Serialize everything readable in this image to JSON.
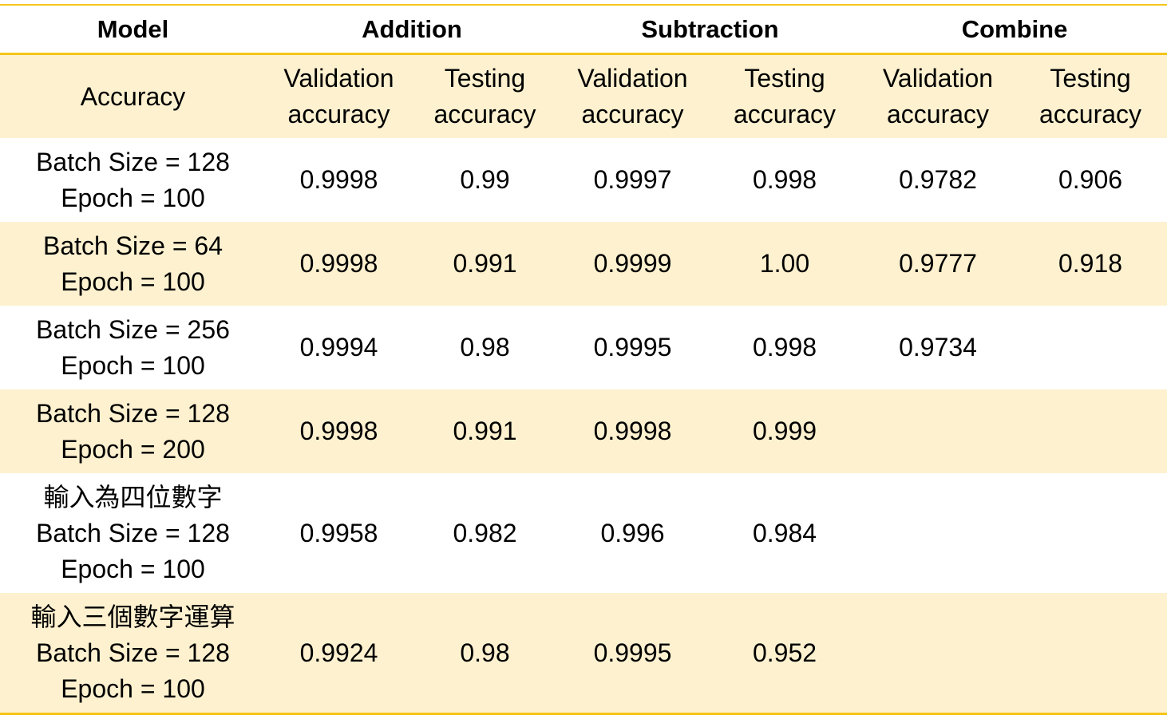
{
  "header": {
    "model": "Model",
    "groups": [
      "Addition",
      "Subtraction",
      "Combine"
    ]
  },
  "subheader": {
    "accuracy": "Accuracy",
    "validation_line1": "Validation",
    "testing_line1": "Testing",
    "line2": "accuracy"
  },
  "rows": [
    {
      "label": [
        "Batch Size = 128",
        "Epoch = 100"
      ],
      "cells": [
        "0.9998",
        "0.99",
        "0.9997",
        "0.998",
        "0.9782",
        "0.906"
      ]
    },
    {
      "label": [
        "Batch Size = 64",
        "Epoch = 100"
      ],
      "cells": [
        "0.9998",
        "0.991",
        "0.9999",
        "1.00",
        "0.9777",
        "0.918"
      ]
    },
    {
      "label": [
        "Batch Size = 256",
        "Epoch = 100"
      ],
      "cells": [
        "0.9994",
        "0.98",
        "0.9995",
        "0.998",
        "0.9734",
        ""
      ]
    },
    {
      "label": [
        "Batch Size = 128",
        "Epoch = 200"
      ],
      "cells": [
        "0.9998",
        "0.991",
        "0.9998",
        "0.999",
        "",
        ""
      ]
    },
    {
      "label": [
        "輸入為四位數字",
        "Batch Size = 128",
        "Epoch = 100"
      ],
      "cells": [
        "0.9958",
        "0.982",
        "0.996",
        "0.984",
        "",
        ""
      ]
    },
    {
      "label": [
        "輸入三個數字運算",
        "Batch Size = 128",
        "Epoch = 100"
      ],
      "cells": [
        "0.9924",
        "0.98",
        "0.9995",
        "0.952",
        "",
        ""
      ]
    }
  ],
  "colors": {
    "accent_line": "#f5c518",
    "shade": "#fdf1cf"
  }
}
